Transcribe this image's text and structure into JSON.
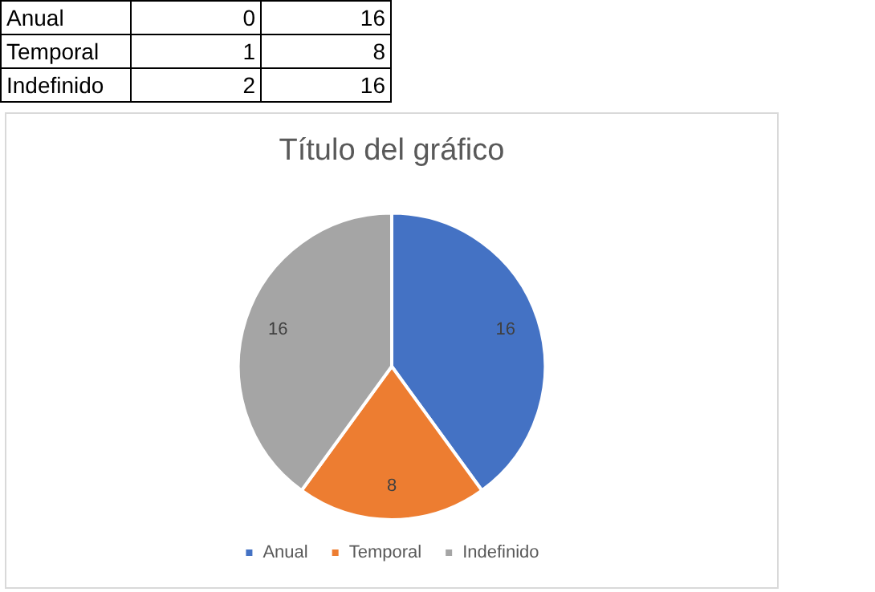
{
  "chart_data": {
    "type": "pie",
    "title": "Título del gráfico",
    "categories": [
      "Anual",
      "Temporal",
      "Indefinido"
    ],
    "values": [
      16,
      8,
      16
    ],
    "colors": [
      "#4472c4",
      "#ed7d31",
      "#a5a5a5"
    ],
    "data_labels": true,
    "legend": "bottom",
    "annotations": [
      "Anual",
      "0",
      "16",
      "Temporal",
      "1",
      "8",
      "Indefinido",
      "2",
      "16"
    ]
  }
}
